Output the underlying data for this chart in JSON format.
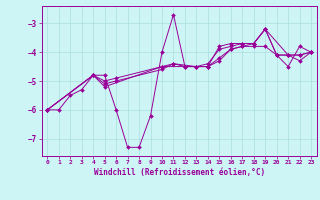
{
  "xlabel": "Windchill (Refroidissement éolien,°C)",
  "background_color": "#cef5f5",
  "grid_color": "#aadddd",
  "line_color": "#990099",
  "xlim": [
    -0.5,
    23.5
  ],
  "ylim": [
    -7.6,
    -2.4
  ],
  "yticks": [
    -7,
    -6,
    -5,
    -4,
    -3
  ],
  "xticks": [
    0,
    1,
    2,
    3,
    4,
    5,
    6,
    7,
    8,
    9,
    10,
    11,
    12,
    13,
    14,
    15,
    16,
    17,
    18,
    19,
    20,
    21,
    22,
    23
  ],
  "series": [
    {
      "x": [
        0,
        1,
        2,
        3,
        4,
        5,
        6,
        7,
        8,
        9,
        10,
        11,
        12,
        13,
        14,
        15,
        16,
        17,
        18,
        19,
        20,
        21,
        22,
        23
      ],
      "y": [
        -6.0,
        -6.0,
        -5.5,
        -5.3,
        -4.8,
        -4.8,
        -6.0,
        -7.3,
        -7.3,
        -6.2,
        -4.0,
        -2.7,
        -4.5,
        -4.5,
        -4.5,
        -3.8,
        -3.7,
        -3.7,
        -3.7,
        -3.2,
        -4.1,
        -4.5,
        -3.8,
        -4.0
      ]
    },
    {
      "x": [
        0,
        4,
        5,
        6,
        10,
        11,
        13,
        14,
        15,
        16,
        17,
        18,
        19,
        20,
        21,
        22,
        23
      ],
      "y": [
        -6.0,
        -4.8,
        -5.0,
        -4.9,
        -4.5,
        -4.4,
        -4.5,
        -4.5,
        -4.3,
        -3.9,
        -3.8,
        -3.8,
        -3.8,
        -4.1,
        -4.1,
        -4.1,
        -4.0
      ]
    },
    {
      "x": [
        0,
        4,
        5,
        6,
        10,
        11,
        12,
        13,
        14,
        15,
        16,
        17,
        18,
        19,
        20,
        21,
        22,
        23
      ],
      "y": [
        -6.0,
        -4.8,
        -5.1,
        -5.0,
        -4.6,
        -4.4,
        -4.5,
        -4.5,
        -4.4,
        -3.9,
        -3.8,
        -3.7,
        -3.7,
        -3.2,
        -4.1,
        -4.1,
        -4.1,
        -4.0
      ]
    },
    {
      "x": [
        0,
        4,
        5,
        10,
        14,
        15,
        16,
        17,
        18,
        19,
        21,
        22,
        23
      ],
      "y": [
        -6.0,
        -4.8,
        -5.2,
        -4.5,
        -4.5,
        -4.2,
        -3.9,
        -3.8,
        -3.7,
        -3.2,
        -4.1,
        -4.3,
        -4.0
      ]
    }
  ]
}
